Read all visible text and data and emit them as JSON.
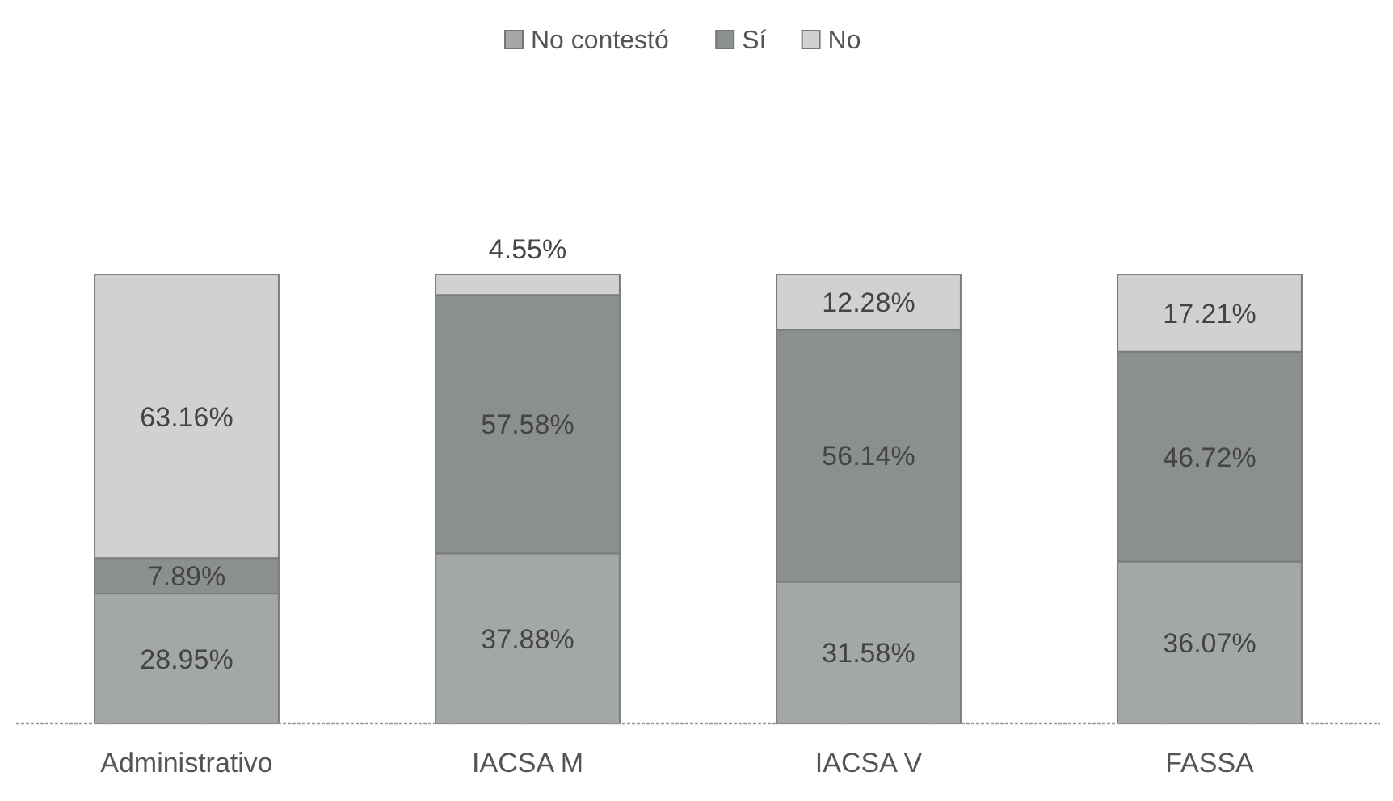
{
  "chart_data": {
    "type": "bar",
    "stacked": true,
    "legend": "top",
    "categories": [
      "Administrativo",
      "IACSA M",
      "IACSA V",
      "FASSA"
    ],
    "series": [
      {
        "name": "No contestó",
        "color": "#a4a8a4",
        "values": [
          28.95,
          37.88,
          31.58,
          36.07
        ],
        "value_labels": [
          "28.95%",
          "37.88%",
          "31.58%",
          "36.07%"
        ]
      },
      {
        "name": "Sí",
        "color": "#8c908c",
        "values": [
          7.89,
          57.58,
          56.14,
          46.72
        ],
        "value_labels": [
          "7.89%",
          "57.58%",
          "56.14%",
          "46.72%"
        ]
      },
      {
        "name": "No",
        "color": "#cfd2cf",
        "values": [
          63.16,
          4.55,
          12.28,
          17.21
        ],
        "value_labels": [
          "63.16%",
          "4.55%",
          "12.28%",
          "17.21%"
        ]
      }
    ]
  }
}
